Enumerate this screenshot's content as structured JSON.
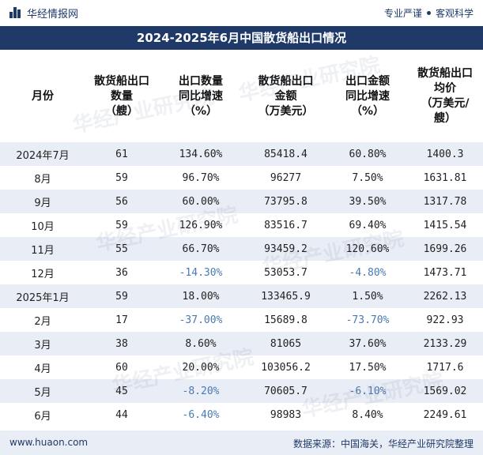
{
  "brand": {
    "name": "华经情报网",
    "slogan_left": "专业严谨",
    "slogan_right": "客观科学",
    "brand_color": "#1f3a68"
  },
  "title": "2024-2025年6月中国散货船出口情况",
  "table": {
    "headers": [
      [
        "月份"
      ],
      [
        "散货船出口",
        "数量",
        "（艘）"
      ],
      [
        "出口数量",
        "同比增速",
        "（%）"
      ],
      [
        "散货船出口",
        "金额",
        "（万美元）"
      ],
      [
        "出口金额",
        "同比增速",
        "（%）"
      ],
      [
        "散货船出口",
        "均价",
        "（万美元/",
        "艘）"
      ]
    ],
    "rows": [
      [
        "2024年7月",
        "61",
        "134.60%",
        "85418.4",
        "60.80%",
        "1400.3"
      ],
      [
        "8月",
        "59",
        "96.70%",
        "96277",
        "7.50%",
        "1631.81"
      ],
      [
        "9月",
        "56",
        "60.00%",
        "73795.8",
        "39.50%",
        "1317.78"
      ],
      [
        "10月",
        "59",
        "126.90%",
        "83516.7",
        "69.40%",
        "1415.54"
      ],
      [
        "11月",
        "55",
        "66.70%",
        "93459.2",
        "120.60%",
        "1699.26"
      ],
      [
        "12月",
        "36",
        "-14.30%",
        "53053.7",
        "-4.80%",
        "1473.71"
      ],
      [
        "2025年1月",
        "59",
        "18.00%",
        "133465.9",
        "1.50%",
        "2262.13"
      ],
      [
        "2月",
        "17",
        "-37.00%",
        "15689.8",
        "-73.70%",
        "922.93"
      ],
      [
        "3月",
        "38",
        "8.60%",
        "81065",
        "37.60%",
        "2133.29"
      ],
      [
        "4月",
        "60",
        "20.00%",
        "103056.2",
        "17.50%",
        "1717.6"
      ],
      [
        "5月",
        "45",
        "-8.20%",
        "70605.7",
        "-6.10%",
        "1569.02"
      ],
      [
        "6月",
        "44",
        "-6.40%",
        "98983",
        "8.40%",
        "2249.61"
      ]
    ],
    "negative_color": "#4a7ab0"
  },
  "watermark_text": "华经产业研究院",
  "footer": {
    "site": "www.huaon.com",
    "source": "数据来源：中国海关，华经产业研究院整理"
  }
}
